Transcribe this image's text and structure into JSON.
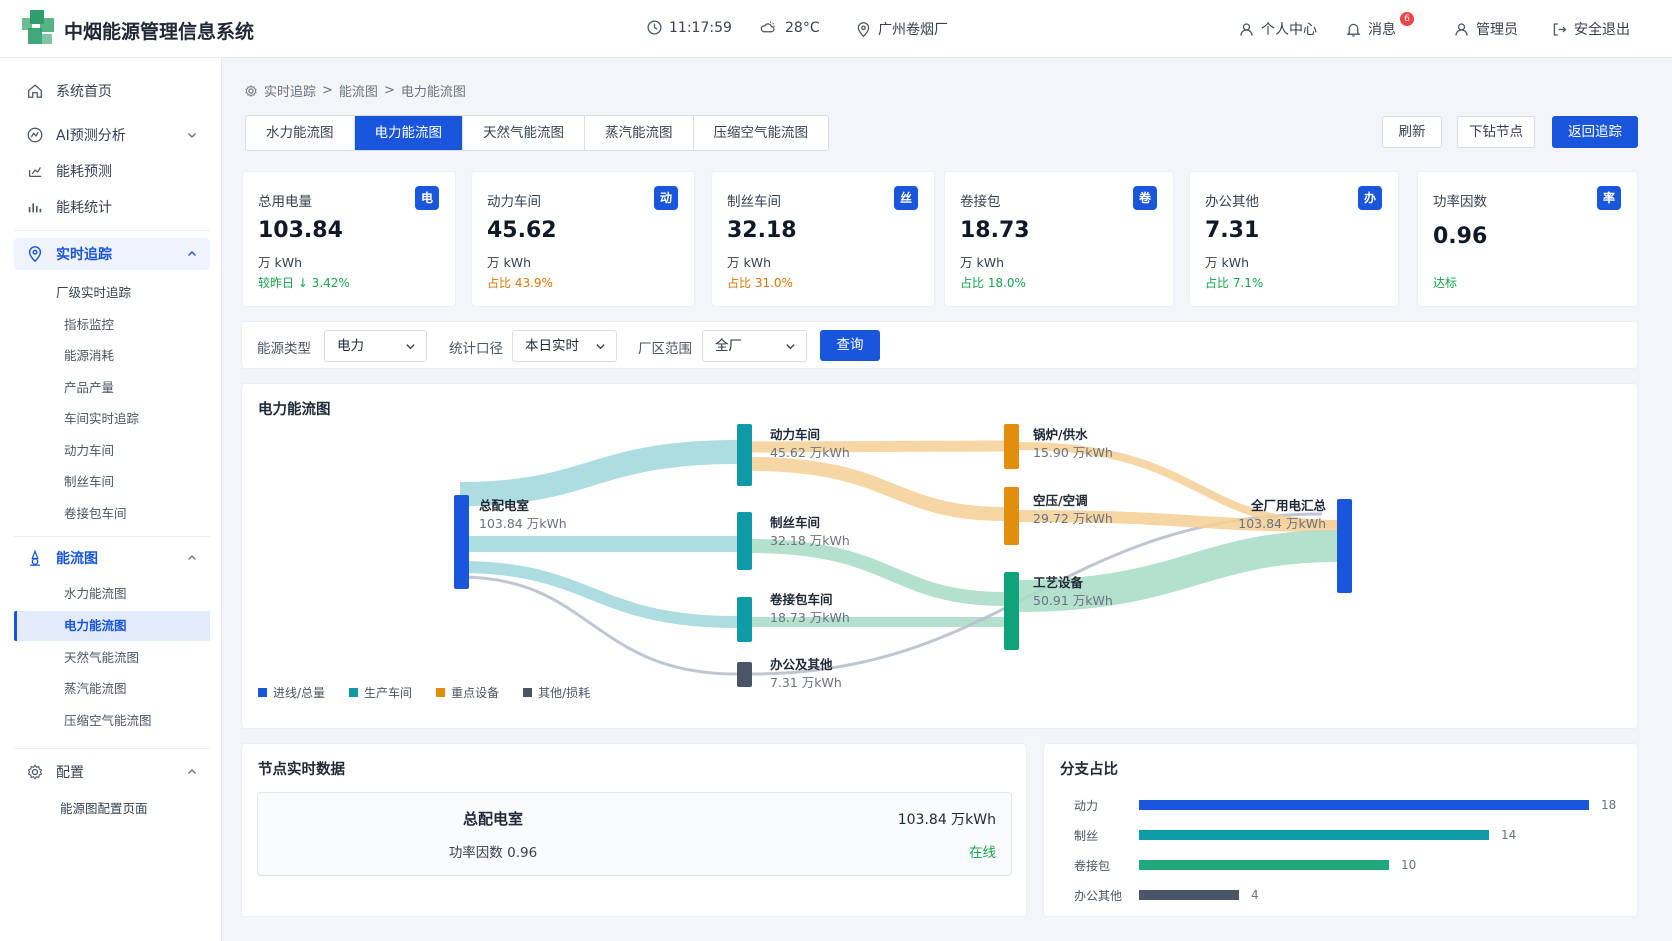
{
  "header": {
    "title": "中烟能源管理信息系统",
    "time": "11:17:59",
    "weather": "28°C",
    "location": "广州卷烟厂",
    "profile": "个人中心",
    "messages": "消息",
    "message_count": "6",
    "user": "管理员",
    "logout": "安全退出"
  },
  "sidebar": {
    "home": "系统首页",
    "ai": "AI预测分析",
    "forecast": "能耗预测",
    "stats": "能耗统计",
    "realtime": "实时追踪",
    "realtime_items": [
      "厂级实时追踪",
      "指标监控",
      "能源消耗",
      "产品产量",
      "车间实时追踪",
      "动力车间",
      "制丝车间",
      "卷接包车间"
    ],
    "flow": "能流图",
    "flow_items": [
      "水力能流图",
      "电力能流图",
      "天然气能流图",
      "蒸汽能流图",
      "压缩空气能流图"
    ],
    "config": "配置",
    "config_items": [
      "能源图配置页面"
    ]
  },
  "breadcrumb": [
    "实时追踪",
    "电力能流图",
    "电力能流图"
  ],
  "breadcrumb_alt": [
    "实时追踪",
    "能流图",
    "电力能流图"
  ],
  "tabs": [
    "水力能流图",
    "电力能流图",
    "天然气能流图",
    "蒸汽能流图",
    "压缩空气能流图"
  ],
  "actions": {
    "refresh": "刷新",
    "drill": "下钻节点",
    "back": "返回追踪"
  },
  "cards": [
    {
      "title": "总用电量",
      "badge": "电",
      "value": "103.84",
      "unit": "万 kWh",
      "note": "较昨日 ↓ 3.42%",
      "note_color": "#16a34a"
    },
    {
      "title": "动力车间",
      "badge": "动",
      "value": "45.62",
      "unit": "万 kWh",
      "note": "占比 43.9%",
      "note_color": "#d97706"
    },
    {
      "title": "制丝车间",
      "badge": "丝",
      "value": "32.18",
      "unit": "万 kWh",
      "note": "占比 31.0%",
      "note_color": "#d97706"
    },
    {
      "title": "卷接包",
      "badge": "卷",
      "value": "18.73",
      "unit": "万 kWh",
      "note": "占比 18.0%",
      "note_color": "#16a34a"
    },
    {
      "title": "办公其他",
      "badge": "办",
      "value": "7.31",
      "unit": "万 kWh",
      "note": "占比 7.1%",
      "note_color": "#16a34a"
    },
    {
      "title": "功率因数",
      "badge": "率",
      "value": "0.96",
      "unit": "",
      "note": "达标",
      "note_color": "#16a34a"
    }
  ],
  "filters": {
    "energy_label": "能源类型",
    "energy_value": "电力",
    "period_label": "统计口径",
    "period_value": "本日实时",
    "area_label": "厂区范围",
    "area_value": "全厂",
    "query": "查询"
  },
  "flow_panel": {
    "title": "电力能流图",
    "nodes": [
      {
        "name": "总配电室",
        "value": "103.84 万kWh",
        "color": "#1a56db"
      },
      {
        "name": "动力车间",
        "value": "45.62 万kWh",
        "color": "#0e9aa7"
      },
      {
        "name": "制丝车间",
        "value": "32.18 万kWh",
        "color": "#0e9aa7"
      },
      {
        "name": "卷接包车间",
        "value": "18.73 万kWh",
        "color": "#0e9aa7"
      },
      {
        "name": "办公及其他",
        "value": "7.31 万kWh",
        "color": "#4b5568"
      },
      {
        "name": "锅炉/供水",
        "value": "15.90 万kWh",
        "color": "#e08e0b"
      },
      {
        "name": "空压/空调",
        "value": "29.72 万kWh",
        "color": "#e08e0b"
      },
      {
        "name": "工艺设备",
        "value": "50.91 万kWh",
        "color": "#10a37a"
      },
      {
        "name": "全厂用电汇总",
        "value": "103.84 万kWh",
        "color": "#1a56db"
      }
    ],
    "legend": [
      {
        "label": "进线/总量",
        "color": "#1a56db"
      },
      {
        "label": "生产车间",
        "color": "#0e9aa7"
      },
      {
        "label": "重点设备",
        "color": "#e08e0b"
      },
      {
        "label": "其他/损耗",
        "color": "#4b5568"
      }
    ]
  },
  "node_panel": {
    "title": "节点实时数据",
    "name": "总配电室",
    "value": "103.84 万kWh",
    "pf": "功率因数 0.96",
    "status": "在线"
  },
  "branch_panel": {
    "title": "分支占比",
    "max": 18,
    "items": [
      {
        "label": "动力",
        "value": 18,
        "color": "#1a56db"
      },
      {
        "label": "制丝",
        "value": 14,
        "color": "#0e9aa7"
      },
      {
        "label": "卷接包",
        "value": 10,
        "color": "#22a77a"
      },
      {
        "label": "办公其他",
        "value": 4,
        "color": "#4b5568"
      }
    ]
  }
}
